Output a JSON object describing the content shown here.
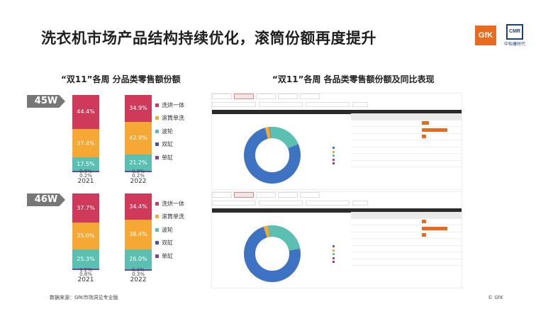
{
  "title": "洗衣机市场产品结构持续优化，滚筒份额再度提升",
  "logos": {
    "gfk": "GfK",
    "cmr_box": "CMR",
    "cmr_text": "中怡康时代"
  },
  "left_subtitle": "“双11”各周 分品类零售额份额",
  "right_subtitle": "“双11”各周 各品类零售额份额及同比表现",
  "source": "数据来源：GfK市场洞见专业版",
  "copyright": "© GfK",
  "colors": {
    "洗烘一体": "#cf3a5b",
    "滚筒单洗": "#f5a833",
    "波轮": "#5bc0b1",
    "双缸": "#3e56a6",
    "单缸": "#8b3f92"
  },
  "chart_data": [
    {
      "type": "bar",
      "stacked": true,
      "week": "45W",
      "categories": [
        "2021",
        "2022"
      ],
      "series": [
        {
          "name": "洗烘一体",
          "values": [
            44.4,
            34.9
          ]
        },
        {
          "name": "滚筒单洗",
          "values": [
            37.4,
            42.9
          ]
        },
        {
          "name": "波轮",
          "values": [
            17.5,
            21.2
          ]
        },
        {
          "name": "双缸",
          "values": [
            0.6,
            0.8
          ]
        },
        {
          "name": "单缸",
          "values": [
            0.2,
            0.2
          ]
        }
      ],
      "ylim": [
        0,
        100
      ]
    },
    {
      "type": "bar",
      "stacked": true,
      "week": "46W",
      "categories": [
        "2021",
        "2022"
      ],
      "series": [
        {
          "name": "洗烘一体",
          "values": [
            37.7,
            34.4
          ]
        },
        {
          "name": "滚筒单洗",
          "values": [
            35.0,
            38.4
          ]
        },
        {
          "name": "波轮",
          "values": [
            25.3,
            26.0
          ]
        },
        {
          "name": "双缸",
          "values": [
            1.2,
            0.8
          ]
        },
        {
          "name": "单缸",
          "values": [
            0.8,
            0.3
          ]
        }
      ],
      "ylim": [
        0,
        100
      ]
    }
  ]
}
